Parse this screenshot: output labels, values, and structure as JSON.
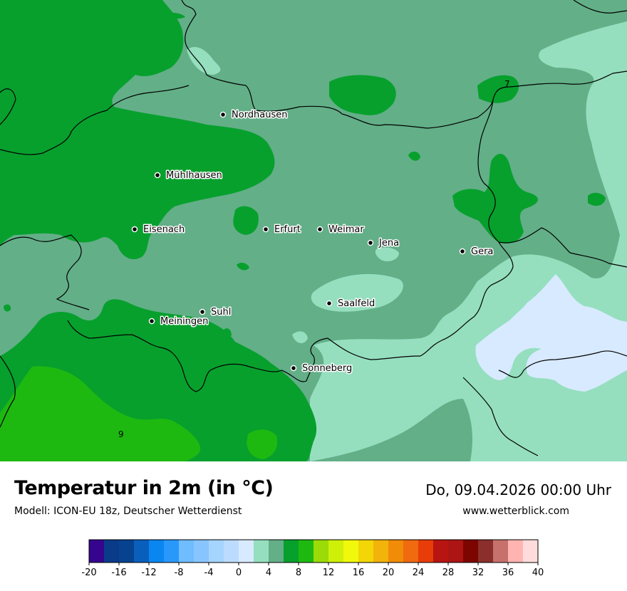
{
  "title": "Temperatur in 2m (in °C)",
  "model": "Modell: ICON-EU 18z, Deutscher Wetterdienst",
  "datetime": "Do, 09.04.2026 00:00 Uhr",
  "website": "www.wetterblick.com",
  "cities": [
    {
      "name": "Nordhausen"
    },
    {
      "name": "Mühlhausen"
    },
    {
      "name": "Eisenach"
    },
    {
      "name": "Erfurt"
    },
    {
      "name": "Weimar"
    },
    {
      "name": "Jena"
    },
    {
      "name": "Gera"
    },
    {
      "name": "Suhl"
    },
    {
      "name": "Meiningen"
    },
    {
      "name": "Saalfeld"
    },
    {
      "name": "Sonneberg"
    }
  ],
  "contour_labels": [
    "7",
    "9"
  ],
  "legend": {
    "min": -20,
    "max": 40,
    "step": 2,
    "tick_labels": [
      "-20",
      "-16",
      "-12",
      "-8",
      "-4",
      "0",
      "4",
      "8",
      "12",
      "16",
      "20",
      "24",
      "28",
      "32",
      "36",
      "40"
    ],
    "colors": [
      "#35058f",
      "#0a3b88",
      "#064290",
      "#0a5fbd",
      "#0a86f0",
      "#2899fb",
      "#6fbcff",
      "#88c5ff",
      "#a5d4ff",
      "#bcdcff",
      "#d8eaff",
      "#95dfbf",
      "#63af88",
      "#07a02d",
      "#1eb910",
      "#9bdb08",
      "#cdef08",
      "#f1f80c",
      "#f3d607",
      "#f2b30b",
      "#f18c08",
      "#f06a10",
      "#e83c09",
      "#b81411",
      "#ad1414",
      "#7d0500",
      "#8a2f2c",
      "#c6716c",
      "#ffb4b2",
      "#ffdcdc"
    ]
  },
  "map_colors": {
    "band_4_6": "#63af88",
    "band_2_4": "#95dfbf",
    "band_6_8": "#07a02d",
    "band_8_10": "#1eb910",
    "band_0_2": "#d8eaff"
  }
}
